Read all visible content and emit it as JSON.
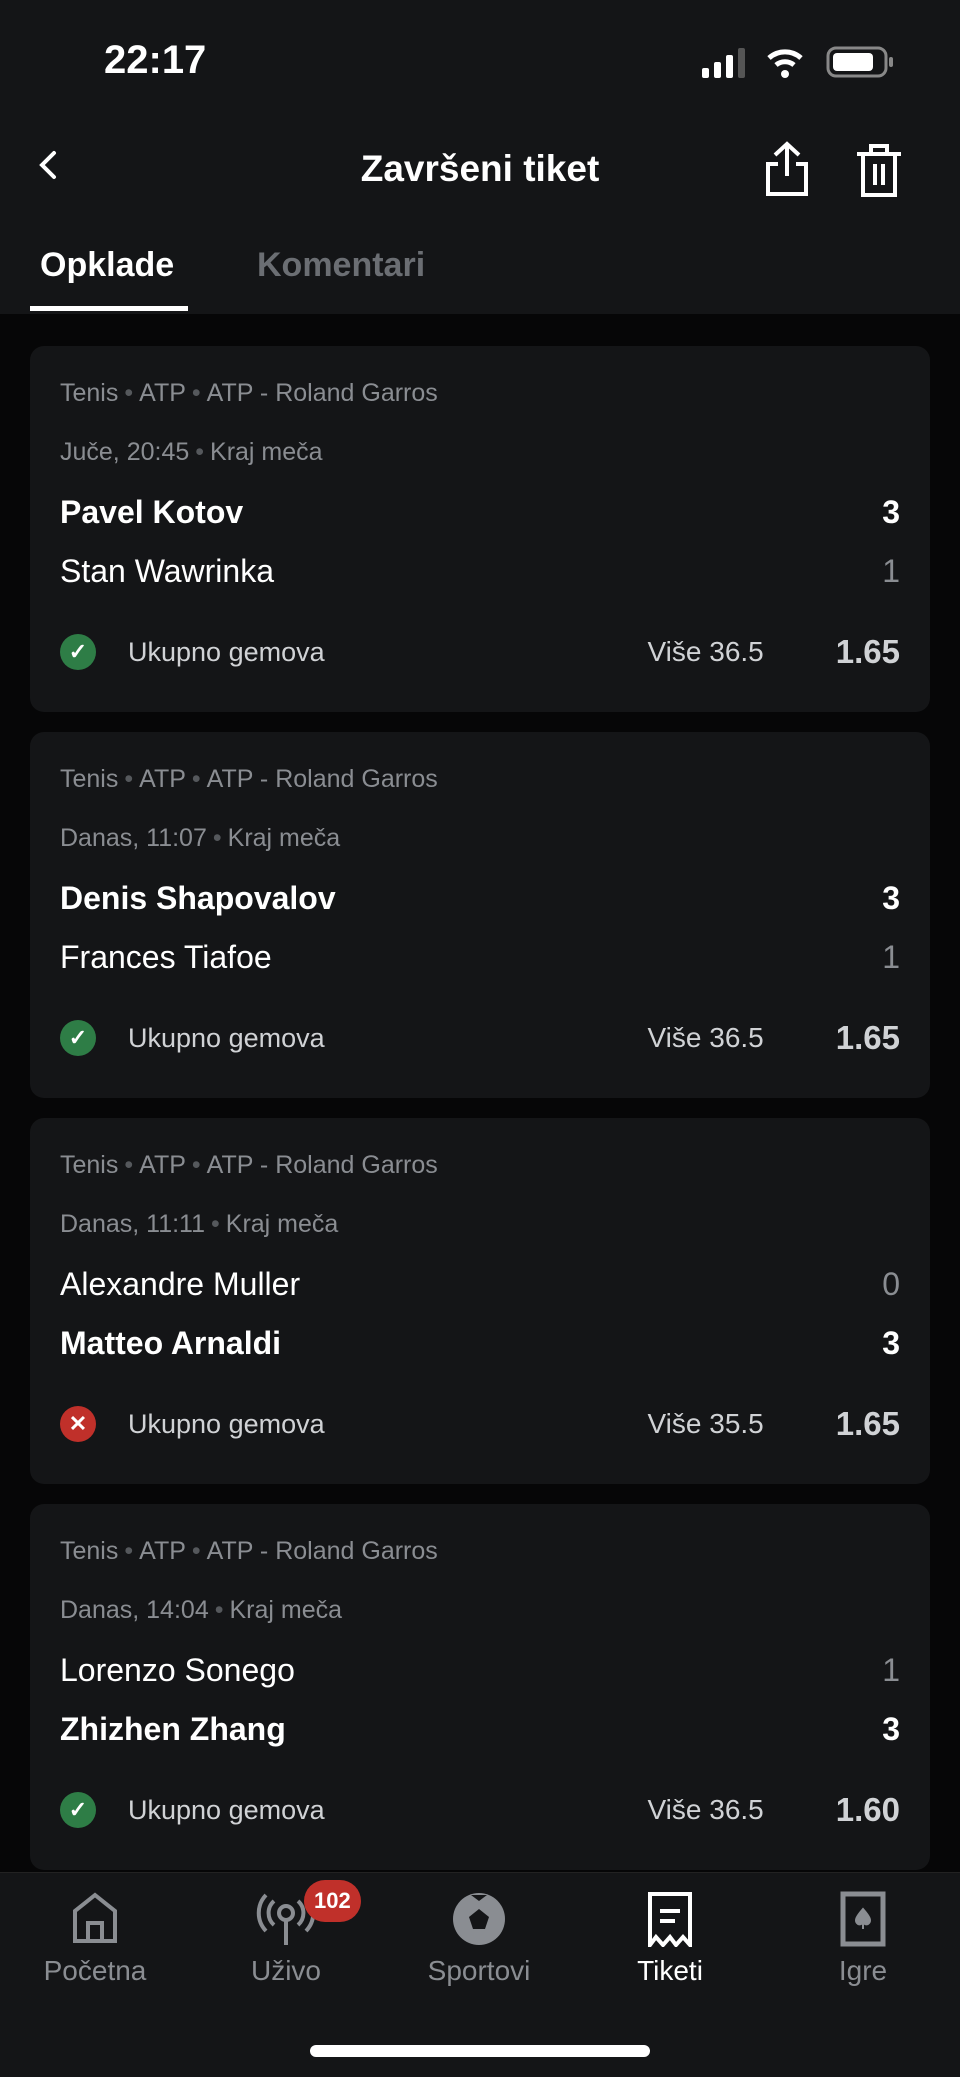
{
  "status": {
    "time": "22:17"
  },
  "header": {
    "title": "Završeni tiket"
  },
  "tabs": [
    {
      "label": "Opklade",
      "active": true
    },
    {
      "label": "Komentari",
      "active": false
    }
  ],
  "bets": [
    {
      "sport": "Tenis",
      "league": "ATP",
      "tournament": "ATP - Roland Garros",
      "date": "Juče, 20:45",
      "status": "Kraj meča",
      "home": {
        "name": "Pavel Kotov",
        "score": "3",
        "winner": true
      },
      "away": {
        "name": "Stan Wawrinka",
        "score": "1",
        "winner": false
      },
      "market": "Ukupno gemova",
      "pick": "Više 36.5",
      "odd": "1.65",
      "result": "won"
    },
    {
      "sport": "Tenis",
      "league": "ATP",
      "tournament": "ATP - Roland Garros",
      "date": "Danas, 11:07",
      "status": "Kraj meča",
      "home": {
        "name": "Denis Shapovalov",
        "score": "3",
        "winner": true
      },
      "away": {
        "name": "Frances Tiafoe",
        "score": "1",
        "winner": false
      },
      "market": "Ukupno gemova",
      "pick": "Više 36.5",
      "odd": "1.65",
      "result": "won"
    },
    {
      "sport": "Tenis",
      "league": "ATP",
      "tournament": "ATP - Roland Garros",
      "date": "Danas, 11:11",
      "status": "Kraj meča",
      "home": {
        "name": "Alexandre Muller",
        "score": "0",
        "winner": false
      },
      "away": {
        "name": "Matteo Arnaldi",
        "score": "3",
        "winner": true
      },
      "market": "Ukupno gemova",
      "pick": "Više 35.5",
      "odd": "1.65",
      "result": "lost"
    },
    {
      "sport": "Tenis",
      "league": "ATP",
      "tournament": "ATP - Roland Garros",
      "date": "Danas, 14:04",
      "status": "Kraj meča",
      "home": {
        "name": "Lorenzo Sonego",
        "score": "1",
        "winner": false
      },
      "away": {
        "name": "Zhizhen Zhang",
        "score": "3",
        "winner": true
      },
      "market": "Ukupno gemova",
      "pick": "Više 36.5",
      "odd": "1.60",
      "result": "won"
    }
  ],
  "colors": {
    "won": "#2e7d46",
    "lost": "#c0302a"
  },
  "nav": [
    {
      "label": "Početna",
      "icon": "home-icon"
    },
    {
      "label": "Uživo",
      "icon": "live-antenna-icon",
      "badge": "102"
    },
    {
      "label": "Sportovi",
      "icon": "soccer-ball-icon"
    },
    {
      "label": "Tiketi",
      "icon": "ticket-icon",
      "active": true
    },
    {
      "label": "Igre",
      "icon": "playing-card-icon"
    }
  ]
}
